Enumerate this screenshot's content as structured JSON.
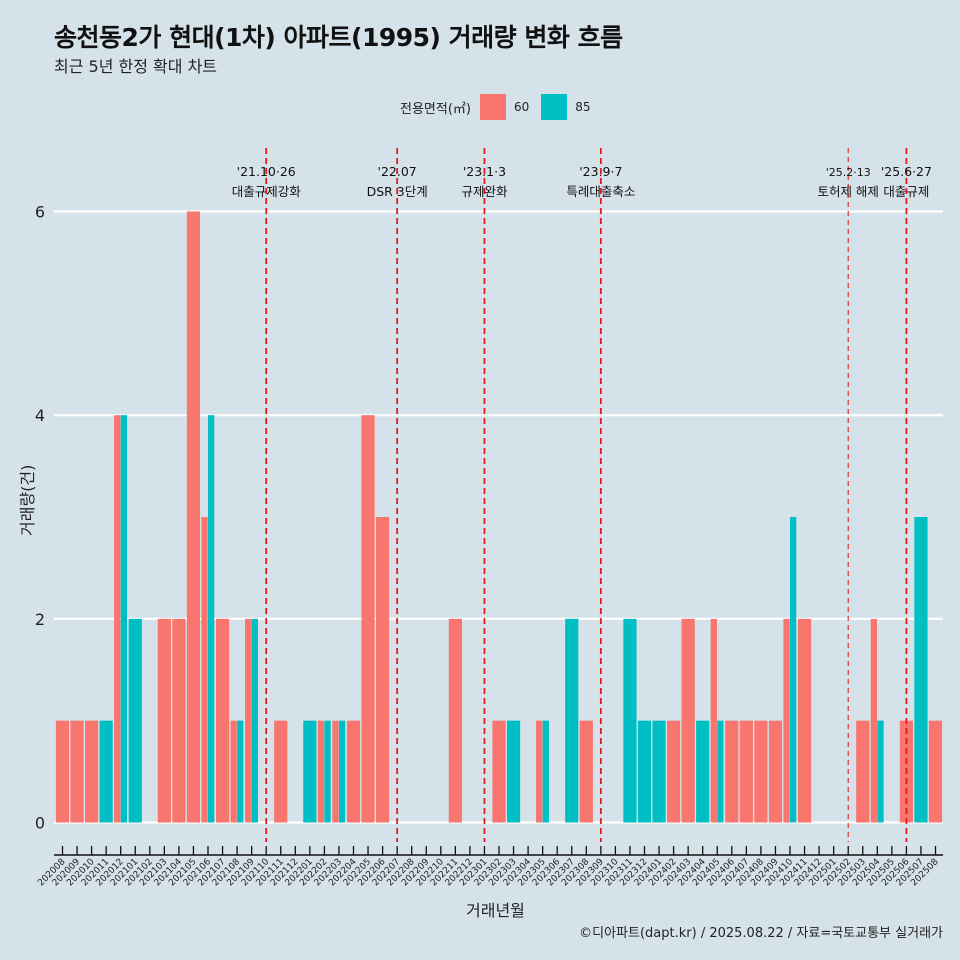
{
  "header": {
    "title": "송천동2가 현대(1차) 아파트(1995) 거래량 변화 흐름",
    "subtitle": "최근 5년 한정 확대 차트"
  },
  "legend": {
    "title": "전용면적(㎡)",
    "items": [
      {
        "label": "60",
        "color": "#f8766d"
      },
      {
        "label": "85",
        "color": "#00bfc4"
      }
    ]
  },
  "caption": "©디아파트(dapt.kr) / 2025.08.22 / 자료=국토교통부 실거래가",
  "chart_data": {
    "type": "bar",
    "title": "송천동2가 현대(1차) 아파트(1995) 거래량 변화 흐름",
    "subtitle": "최근 5년 한정 확대 차트",
    "xlabel": "거래년월",
    "ylabel": "거래량(건)",
    "ylim": [
      0,
      6
    ],
    "yticks": [
      0,
      2,
      4,
      6
    ],
    "grid": true,
    "legend_position": "top",
    "categories": [
      "202008",
      "202009",
      "202010",
      "202011",
      "202012",
      "202101",
      "202102",
      "202103",
      "202104",
      "202105",
      "202106",
      "202107",
      "202108",
      "202109",
      "202110",
      "202111",
      "202112",
      "202201",
      "202202",
      "202203",
      "202204",
      "202205",
      "202206",
      "202207",
      "202208",
      "202209",
      "202210",
      "202211",
      "202212",
      "202301",
      "202302",
      "202303",
      "202304",
      "202305",
      "202306",
      "202307",
      "202308",
      "202309",
      "202310",
      "202311",
      "202312",
      "202401",
      "202402",
      "202403",
      "202404",
      "202405",
      "202406",
      "202407",
      "202408",
      "202409",
      "202410",
      "202411",
      "202412",
      "202501",
      "202502",
      "202503",
      "202504",
      "202505",
      "202506",
      "202507",
      "202508"
    ],
    "series": [
      {
        "name": "60",
        "color": "#f8766d",
        "values": [
          1,
          1,
          1,
          0,
          4,
          0,
          0,
          2,
          2,
          6,
          3,
          2,
          1,
          2,
          0,
          1,
          0,
          0,
          1,
          1,
          1,
          4,
          3,
          0,
          0,
          0,
          0,
          2,
          0,
          0,
          1,
          0,
          0,
          1,
          0,
          0,
          1,
          0,
          0,
          0,
          0,
          0,
          1,
          2,
          0,
          2,
          1,
          1,
          1,
          1,
          2,
          2,
          0,
          0,
          0,
          1,
          2,
          0,
          1,
          0,
          1
        ]
      },
      {
        "name": "85",
        "color": "#00bfc4",
        "values": [
          0,
          0,
          0,
          1,
          4,
          2,
          0,
          0,
          0,
          0,
          4,
          0,
          1,
          2,
          0,
          0,
          0,
          1,
          1,
          1,
          0,
          0,
          0,
          0,
          0,
          0,
          0,
          0,
          0,
          0,
          0,
          1,
          0,
          1,
          0,
          2,
          0,
          0,
          0,
          2,
          1,
          1,
          0,
          0,
          1,
          1,
          0,
          0,
          0,
          0,
          3,
          0,
          0,
          0,
          0,
          0,
          1,
          0,
          0,
          3,
          0
        ]
      }
    ],
    "annotations": [
      {
        "at": "202110",
        "date": "'21.10·26",
        "label": "대출규제강화",
        "style": "bold"
      },
      {
        "at": "202207",
        "date": "'22.07",
        "label": "DSR 3단계",
        "style": "bold"
      },
      {
        "at": "202301",
        "date": "'23.1·3",
        "label": "규제완화",
        "style": "bold"
      },
      {
        "at": "202309",
        "date": "'23.9·7",
        "label": "특례대출축소",
        "style": "bold"
      },
      {
        "at": "202502",
        "date": "'25.2·13",
        "label": "토허제 해제",
        "style": "thin"
      },
      {
        "at": "202506",
        "date": "'25.6·27",
        "label": "대출규제",
        "style": "bold"
      }
    ]
  }
}
